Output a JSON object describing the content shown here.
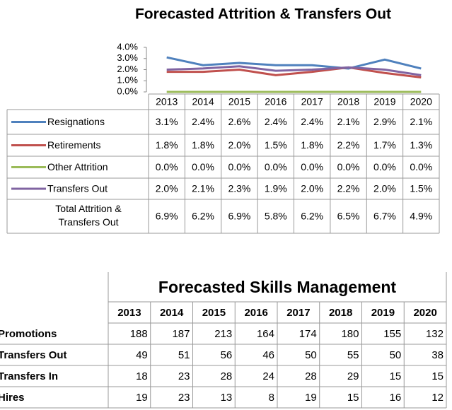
{
  "chart_data": {
    "type": "line",
    "title": "Forecasted Attrition & Transfers Out",
    "categories": [
      "2013",
      "2014",
      "2015",
      "2016",
      "2017",
      "2018",
      "2019",
      "2020"
    ],
    "ylim": [
      0,
      4
    ],
    "yticks": [
      {
        "value": 0,
        "label": "0.0%"
      },
      {
        "value": 1,
        "label": "1.0%"
      },
      {
        "value": 2,
        "label": "2.0%"
      },
      {
        "value": 3,
        "label": "3.0%"
      },
      {
        "value": 4,
        "label": "4.0%"
      }
    ],
    "series": [
      {
        "name": "Resignations",
        "color": "#4f81bd",
        "values": [
          3.1,
          2.4,
          2.6,
          2.4,
          2.4,
          2.1,
          2.9,
          2.1
        ],
        "value_labels": [
          "3.1%",
          "2.4%",
          "2.6%",
          "2.4%",
          "2.4%",
          "2.1%",
          "2.9%",
          "2.1%"
        ]
      },
      {
        "name": "Retirements",
        "color": "#c0504d",
        "values": [
          1.8,
          1.8,
          2.0,
          1.5,
          1.8,
          2.2,
          1.7,
          1.3
        ],
        "value_labels": [
          "1.8%",
          "1.8%",
          "2.0%",
          "1.5%",
          "1.8%",
          "2.2%",
          "1.7%",
          "1.3%"
        ]
      },
      {
        "name": "Other Attrition",
        "color": "#9bbb59",
        "values": [
          0,
          0,
          0,
          0,
          0,
          0,
          0,
          0
        ],
        "value_labels": [
          "0.0%",
          "0.0%",
          "0.0%",
          "0.0%",
          "0.0%",
          "0.0%",
          "0.0%",
          "0.0%"
        ]
      },
      {
        "name": "Transfers Out",
        "color": "#8064a2",
        "values": [
          2.0,
          2.1,
          2.3,
          1.9,
          2.0,
          2.2,
          2.0,
          1.5
        ],
        "value_labels": [
          "2.0%",
          "2.1%",
          "2.3%",
          "1.9%",
          "2.0%",
          "2.2%",
          "2.0%",
          "1.5%"
        ]
      }
    ],
    "totals": {
      "name": "Total Attrition & Transfers Out",
      "labels": [
        "6.9%",
        "6.2%",
        "6.9%",
        "5.8%",
        "6.2%",
        "6.5%",
        "6.7%",
        "4.9%"
      ]
    }
  },
  "skills_table": {
    "title": "Forecasted Skills Management",
    "columns": [
      "2013",
      "2014",
      "2015",
      "2016",
      "2017",
      "2018",
      "2019",
      "2020"
    ],
    "rows": [
      {
        "label": "Promotions",
        "values": [
          188,
          187,
          213,
          164,
          174,
          180,
          155,
          132
        ]
      },
      {
        "label": "Transfers Out",
        "values": [
          49,
          51,
          56,
          46,
          50,
          55,
          50,
          38
        ]
      },
      {
        "label": "Transfers In",
        "values": [
          18,
          23,
          28,
          24,
          28,
          29,
          15,
          15
        ]
      },
      {
        "label": "Hires",
        "values": [
          19,
          23,
          13,
          8,
          19,
          15,
          16,
          12
        ]
      }
    ]
  }
}
